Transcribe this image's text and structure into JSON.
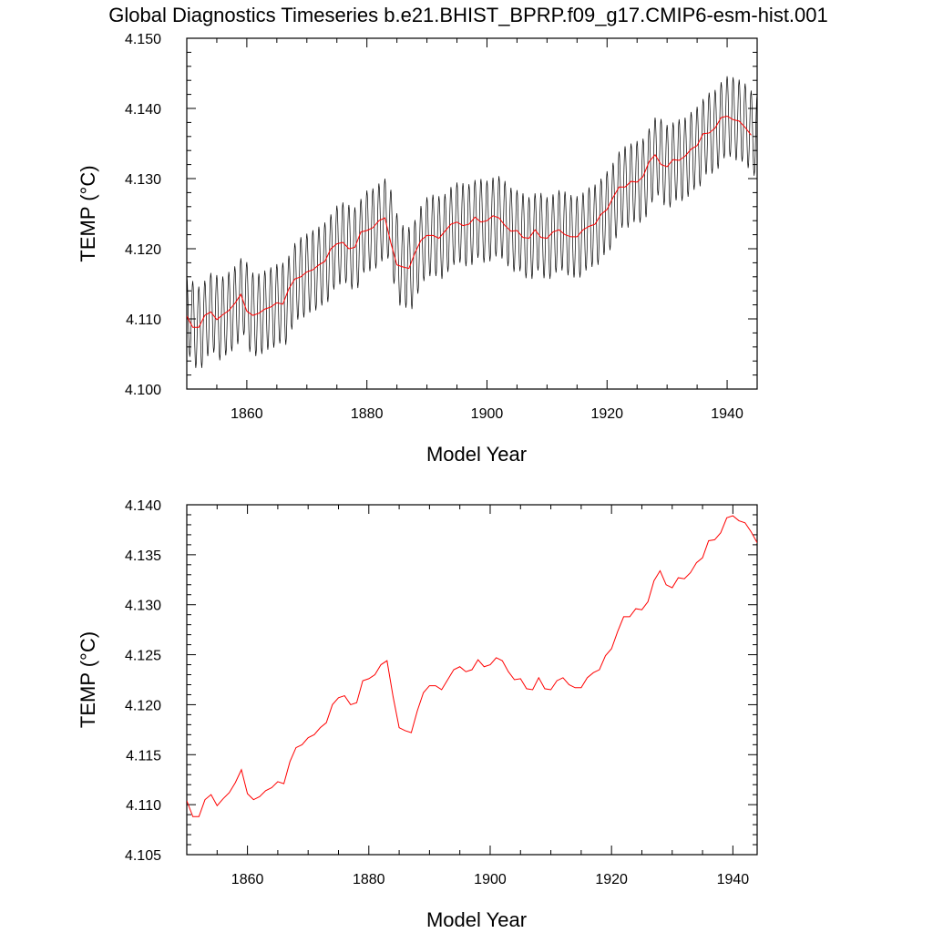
{
  "figure": {
    "title": "Global Diagnostics Timeseries b.e21.BHIST_BPRP.f09_g17.CMIP6-esm-hist.001"
  },
  "chart_data": [
    {
      "type": "line",
      "xlabel": "Model Year",
      "ylabel": "TEMP (°C)",
      "xlim": [
        1850,
        1945
      ],
      "ylim": [
        4.1,
        4.15
      ],
      "xticks": [
        "1860",
        "1880",
        "1900",
        "1920",
        "1940"
      ],
      "yticks": [
        "4.100",
        "4.110",
        "4.120",
        "4.130",
        "4.140",
        "4.150"
      ],
      "grid": false,
      "series": [
        {
          "kind": "monthly",
          "color": "#000000",
          "x_start": 1850.0,
          "step": 0.08333,
          "seasonal_amplitude": 0.0058,
          "seasonal_phase": 0.0
        },
        {
          "kind": "annual_mean",
          "color": "#ff0000",
          "x": [
            1850,
            1851,
            1852,
            1853,
            1854,
            1855,
            1856,
            1857,
            1858,
            1859,
            1860,
            1861,
            1862,
            1863,
            1864,
            1865,
            1866,
            1867,
            1868,
            1869,
            1870,
            1871,
            1872,
            1873,
            1874,
            1875,
            1876,
            1877,
            1878,
            1879,
            1880,
            1881,
            1882,
            1883,
            1884,
            1885,
            1886,
            1887,
            1888,
            1889,
            1890,
            1891,
            1892,
            1893,
            1894,
            1895,
            1896,
            1897,
            1898,
            1899,
            1900,
            1901,
            1902,
            1903,
            1904,
            1905,
            1906,
            1907,
            1908,
            1909,
            1910,
            1911,
            1912,
            1913,
            1914,
            1915,
            1916,
            1917,
            1918,
            1919,
            1920,
            1921,
            1922,
            1923,
            1924,
            1925,
            1926,
            1927,
            1928,
            1929,
            1930,
            1931,
            1932,
            1933,
            1934,
            1935,
            1936,
            1937,
            1938,
            1939,
            1940,
            1941,
            1942,
            1943,
            1944
          ],
          "y": [
            4.1104,
            4.1088,
            4.1088,
            4.1105,
            4.111,
            4.1099,
            4.1106,
            4.1112,
            4.1122,
            4.1135,
            4.1111,
            4.1105,
            4.1108,
            4.1114,
            4.1117,
            4.1123,
            4.1121,
            4.1143,
            4.1157,
            4.116,
            4.1167,
            4.117,
            4.1177,
            4.1182,
            4.12,
            4.1207,
            4.1209,
            4.12,
            4.1202,
            4.1224,
            4.1226,
            4.123,
            4.124,
            4.1244,
            4.1208,
            4.1177,
            4.1174,
            4.1172,
            4.1194,
            4.1212,
            4.1219,
            4.1219,
            4.1215,
            4.1225,
            4.1235,
            4.1238,
            4.1233,
            4.1235,
            4.1245,
            4.1238,
            4.124,
            4.1247,
            4.1244,
            4.1233,
            4.1225,
            4.1226,
            4.1216,
            4.1215,
            4.1227,
            4.1216,
            4.1215,
            4.1224,
            4.1227,
            4.122,
            4.1217,
            4.1217,
            4.1227,
            4.1232,
            4.1235,
            4.1249,
            4.1256,
            4.1273,
            4.1288,
            4.1288,
            4.1296,
            4.1295,
            4.1303,
            4.1324,
            4.1334,
            4.132,
            4.1317,
            4.1327,
            4.1326,
            4.1332,
            4.1342,
            4.1347,
            4.1364,
            4.1365,
            4.1372,
            4.1387,
            4.1389,
            4.1384,
            4.1382,
            4.1373,
            4.1362
          ]
        }
      ]
    },
    {
      "type": "line",
      "xlabel": "Model Year",
      "ylabel": "TEMP (°C)",
      "xlim": [
        1850,
        1944
      ],
      "ylim": [
        4.105,
        4.14
      ],
      "xticks": [
        "1860",
        "1880",
        "1900",
        "1920",
        "1940"
      ],
      "yticks": [
        "4.105",
        "4.110",
        "4.115",
        "4.120",
        "4.125",
        "4.130",
        "4.135",
        "4.140"
      ],
      "grid": false,
      "series": [
        {
          "kind": "annual_mean",
          "color": "#ff0000",
          "x": [
            1850,
            1851,
            1852,
            1853,
            1854,
            1855,
            1856,
            1857,
            1858,
            1859,
            1860,
            1861,
            1862,
            1863,
            1864,
            1865,
            1866,
            1867,
            1868,
            1869,
            1870,
            1871,
            1872,
            1873,
            1874,
            1875,
            1876,
            1877,
            1878,
            1879,
            1880,
            1881,
            1882,
            1883,
            1884,
            1885,
            1886,
            1887,
            1888,
            1889,
            1890,
            1891,
            1892,
            1893,
            1894,
            1895,
            1896,
            1897,
            1898,
            1899,
            1900,
            1901,
            1902,
            1903,
            1904,
            1905,
            1906,
            1907,
            1908,
            1909,
            1910,
            1911,
            1912,
            1913,
            1914,
            1915,
            1916,
            1917,
            1918,
            1919,
            1920,
            1921,
            1922,
            1923,
            1924,
            1925,
            1926,
            1927,
            1928,
            1929,
            1930,
            1931,
            1932,
            1933,
            1934,
            1935,
            1936,
            1937,
            1938,
            1939,
            1940,
            1941,
            1942,
            1943,
            1944
          ],
          "y": [
            4.1104,
            4.1088,
            4.1088,
            4.1105,
            4.111,
            4.1099,
            4.1106,
            4.1112,
            4.1122,
            4.1135,
            4.1111,
            4.1105,
            4.1108,
            4.1114,
            4.1117,
            4.1123,
            4.1121,
            4.1143,
            4.1157,
            4.116,
            4.1167,
            4.117,
            4.1177,
            4.1182,
            4.12,
            4.1207,
            4.1209,
            4.12,
            4.1202,
            4.1224,
            4.1226,
            4.123,
            4.124,
            4.1244,
            4.1208,
            4.1177,
            4.1174,
            4.1172,
            4.1194,
            4.1212,
            4.1219,
            4.1219,
            4.1215,
            4.1225,
            4.1235,
            4.1238,
            4.1233,
            4.1235,
            4.1245,
            4.1238,
            4.124,
            4.1247,
            4.1244,
            4.1233,
            4.1225,
            4.1226,
            4.1216,
            4.1215,
            4.1227,
            4.1216,
            4.1215,
            4.1224,
            4.1227,
            4.122,
            4.1217,
            4.1217,
            4.1227,
            4.1232,
            4.1235,
            4.1249,
            4.1256,
            4.1273,
            4.1288,
            4.1288,
            4.1296,
            4.1295,
            4.1303,
            4.1324,
            4.1334,
            4.132,
            4.1317,
            4.1327,
            4.1326,
            4.1332,
            4.1342,
            4.1347,
            4.1364,
            4.1365,
            4.1372,
            4.1387,
            4.1389,
            4.1384,
            4.1382,
            4.1373,
            4.1362
          ]
        }
      ]
    }
  ]
}
